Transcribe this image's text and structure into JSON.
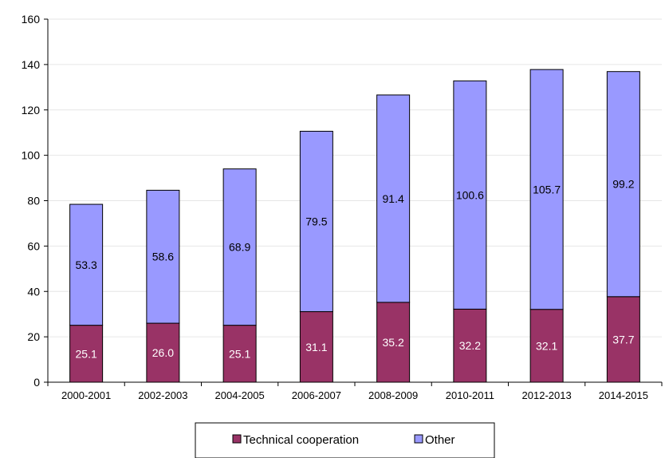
{
  "chart_data": {
    "type": "bar",
    "stacked": true,
    "categories": [
      "2000-2001",
      "2002-2003",
      "2004-2005",
      "2006-2007",
      "2008-2009",
      "2010-2011",
      "2012-2013",
      "2014-2015"
    ],
    "series": [
      {
        "name": "Technical cooperation",
        "values": [
          25.1,
          26.0,
          25.1,
          31.1,
          35.2,
          32.2,
          32.1,
          37.7
        ],
        "color": "#993366",
        "label_color": "#ffffff"
      },
      {
        "name": "Other",
        "values": [
          53.3,
          58.6,
          68.9,
          79.5,
          91.4,
          100.6,
          105.7,
          99.2
        ],
        "color": "#9999ff",
        "label_color": "#000000"
      }
    ],
    "ylim": [
      0,
      160
    ],
    "yticks": [
      0,
      20,
      40,
      60,
      80,
      100,
      120,
      140,
      160
    ],
    "grid": true,
    "legend_position": "bottom-center"
  }
}
